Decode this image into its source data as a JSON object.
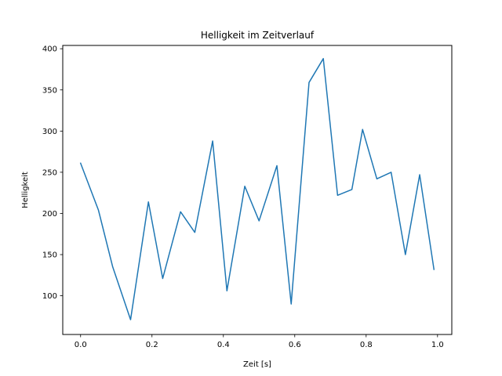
{
  "chart_data": {
    "type": "line",
    "title": "Helligkeit im Zeitverlauf",
    "xlabel": "Zeit [s]",
    "ylabel": "Helligkeit",
    "xlim": [
      -0.05,
      1.04
    ],
    "ylim": [
      53,
      404
    ],
    "xticks": [
      0.0,
      0.2,
      0.4,
      0.6,
      0.8,
      1.0
    ],
    "xtick_labels": [
      "0.0",
      "0.2",
      "0.4",
      "0.6",
      "0.8",
      "1.0"
    ],
    "yticks": [
      100,
      150,
      200,
      250,
      300,
      350,
      400
    ],
    "ytick_labels": [
      "100",
      "150",
      "200",
      "250",
      "300",
      "350",
      "400"
    ],
    "grid": false,
    "series": [
      {
        "color": "#1f77b4",
        "x": [
          0.0,
          0.05,
          0.09,
          0.14,
          0.19,
          0.23,
          0.28,
          0.32,
          0.37,
          0.41,
          0.46,
          0.5,
          0.55,
          0.59,
          0.64,
          0.68,
          0.72,
          0.76,
          0.79,
          0.83,
          0.87,
          0.91,
          0.95,
          0.99
        ],
        "y": [
          261,
          204,
          135,
          71,
          214,
          121,
          202,
          177,
          288,
          106,
          233,
          191,
          258,
          90,
          359,
          388,
          222,
          229,
          302,
          242,
          250,
          150,
          247,
          132
        ]
      }
    ]
  }
}
